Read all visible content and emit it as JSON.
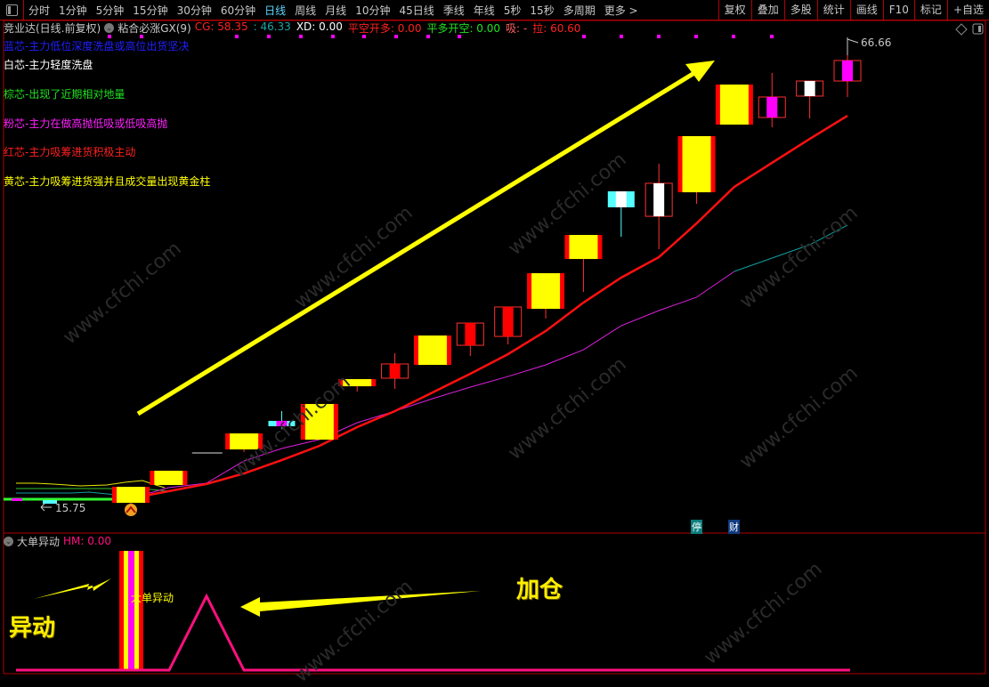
{
  "toolbar": {
    "periods": [
      "分时",
      "1分钟",
      "5分钟",
      "15分钟",
      "30分钟",
      "60分钟",
      "日线",
      "周线",
      "月线",
      "10分钟",
      "45日线",
      "季线",
      "年线",
      "5秒",
      "15秒",
      "多周期",
      "更多 >"
    ],
    "active_period": "日线",
    "buttons": [
      "复权",
      "叠加",
      "多股",
      "统计",
      "画线",
      "F10",
      "标记",
      "+自选"
    ]
  },
  "main_panel": {
    "stock_title": "竞业达(日线.前复权)",
    "indicator_name": "粘合必涨GX(9)",
    "values": [
      {
        "label": "CG: 58.35",
        "color": "#ff2020"
      },
      {
        "label": ": 46.33",
        "color": "#1aa6a6"
      },
      {
        "label": "XD: 0.00",
        "color": "#ffffff"
      },
      {
        "label": "平空开多: 0.00",
        "color": "#ff2020"
      },
      {
        "label": "平多开空: 0.00",
        "color": "#20e020"
      },
      {
        "label": "吸: -",
        "color": "#ff6060"
      },
      {
        "label": "拉: 60.60",
        "color": "#ff2020"
      }
    ],
    "legend": [
      {
        "text": "蓝芯-主力低位深度洗盘或高位出货坚决",
        "color": "#2020ff"
      },
      {
        "text": "白芯-主力轻度洗盘",
        "color": "#ffffff"
      },
      {
        "text": "棕芯-出现了近期相对地量",
        "color": "#20e020"
      },
      {
        "text": "粉芯-主力在做高抛低吸或低吸高抛",
        "color": "#ff20ff"
      },
      {
        "text": "红芯-主力吸筹进货积极主动",
        "color": "#ff2020"
      },
      {
        "text": "黄芯-主力吸筹进货强并且成交量出现黄金柱",
        "color": "#ffff00"
      }
    ],
    "high_label": "66.66",
    "low_label": "15.75",
    "markers": [
      "停",
      "财"
    ],
    "annotation_rising": "up-arrow",
    "watermark": "www.cfchi.com"
  },
  "chart_data": {
    "type": "candlestick",
    "candles": [
      {
        "o": 16.04,
        "c": 17.79,
        "h": 17.79,
        "l": 15.75,
        "style": "up"
      },
      {
        "o": 17.99,
        "c": 19.55,
        "h": 19.55,
        "l": 17.99,
        "style": "up"
      },
      {
        "o": 21.49,
        "c": 21.49,
        "h": 21.49,
        "l": 21.49,
        "style": "flat"
      },
      {
        "o": 21.88,
        "c": 23.63,
        "h": 23.63,
        "l": 21.59,
        "style": "up"
      },
      {
        "o": 24.71,
        "c": 24.6,
        "h": 26.07,
        "l": 24.12,
        "style": "box",
        "outer": "#55ffff",
        "inner": "#ff00ff"
      },
      {
        "o": 22.95,
        "c": 26.85,
        "h": 26.85,
        "l": 22.95,
        "style": "up"
      },
      {
        "o": 28.79,
        "c": 29.57,
        "h": 29.57,
        "l": 28.21,
        "style": "up"
      },
      {
        "o": 31.23,
        "c": 29.67,
        "h": 32.4,
        "l": 28.5,
        "style": "hollow",
        "inner": "#ff0000"
      },
      {
        "o": 31.13,
        "c": 34.34,
        "h": 34.34,
        "l": 31.13,
        "style": "up"
      },
      {
        "o": 35.7,
        "c": 33.27,
        "h": 35.7,
        "l": 32.1,
        "style": "hollow",
        "inner": "#ff0000"
      },
      {
        "o": 37.46,
        "c": 34.24,
        "h": 37.46,
        "l": 33.37,
        "style": "hollow",
        "inner": "#ff0000"
      },
      {
        "o": 37.26,
        "c": 41.16,
        "h": 41.16,
        "l": 36.19,
        "style": "up"
      },
      {
        "o": 42.71,
        "c": 45.34,
        "h": 45.34,
        "l": 39.11,
        "style": "up"
      },
      {
        "o": 49.82,
        "c": 48.36,
        "h": 49.82,
        "l": 45.15,
        "style": "box",
        "outer": "#55ffff",
        "inner": "#ffffff"
      },
      {
        "o": 50.99,
        "c": 47.38,
        "h": 53.13,
        "l": 43.78,
        "style": "hollow",
        "inner": "#ffffff"
      },
      {
        "o": 50.01,
        "c": 56.15,
        "h": 56.15,
        "l": 48.75,
        "style": "up"
      },
      {
        "o": 57.41,
        "c": 61.79,
        "h": 61.79,
        "l": 57.41,
        "style": "up"
      },
      {
        "o": 60.43,
        "c": 58.19,
        "h": 63.06,
        "l": 57.12,
        "style": "hollow",
        "inner": "#ff00ff"
      },
      {
        "o": 62.18,
        "c": 60.53,
        "h": 62.18,
        "l": 58.09,
        "style": "hollow",
        "inner": "#ffffff"
      },
      {
        "o": 64.42,
        "c": 62.18,
        "h": 66.66,
        "l": 60.43,
        "style": "hollow",
        "inner": "#ff00ff"
      }
    ],
    "ma_red": [
      16.53,
      17.31,
      18.09,
      19.25,
      20.71,
      22.27,
      24.32,
      26.07,
      28.11,
      30.16,
      32.3,
      34.83,
      37.94,
      40.67,
      42.91,
      46.61,
      50.6,
      53.23,
      55.85,
      58.38
    ],
    "ma_magenta": [
      16.53,
      17.7,
      18.18,
      20.62,
      21.98,
      22.95,
      24.8,
      26.07,
      27.43,
      28.7,
      29.86,
      31.13,
      32.78,
      35.41,
      37.07,
      38.53,
      41.35
    ],
    "ma_teal_tail": [
      41.35,
      42.81,
      44.27,
      46.41
    ],
    "price_range": [
      15.75,
      66.66
    ],
    "colors": {
      "up_body": "#ffff00",
      "up_edge": "#ff0000",
      "hollow_edge": "#ff3030",
      "ma_red": "#ff1010",
      "ma_magenta": "#e020e0",
      "ma_teal": "#10a0a0"
    }
  },
  "sub_panel": {
    "indicator_name": "大单异动",
    "hm_value": "HM: 0.00",
    "bar_label": "大单异动",
    "annotation_left": "异动",
    "annotation_right": "加仓",
    "line_color": "#ff1080"
  }
}
